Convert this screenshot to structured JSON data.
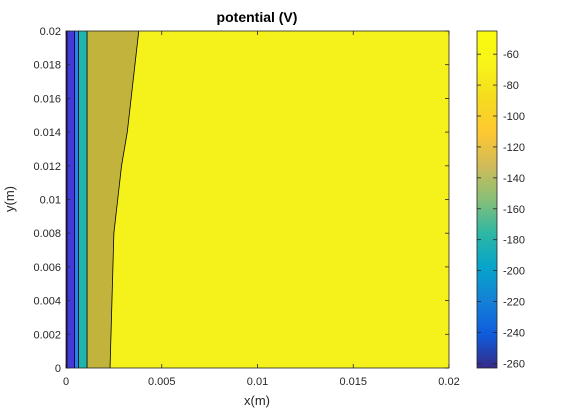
{
  "chart_data": {
    "type": "contour",
    "title": "potential (V)",
    "xlabel": "x(m)",
    "ylabel": "y(m)",
    "xlim": [
      0,
      0.02
    ],
    "ylim": [
      0,
      0.02
    ],
    "x_ticks": [
      "0",
      "0.005",
      "0.01",
      "0.015",
      "0.02"
    ],
    "x_tick_values": [
      0,
      0.005,
      0.01,
      0.015,
      0.02
    ],
    "y_ticks": [
      "0",
      "0.002",
      "0.004",
      "0.006",
      "0.008",
      "0.01",
      "0.012",
      "0.014",
      "0.016",
      "0.018",
      "0.02"
    ],
    "y_tick_values": [
      0,
      0.002,
      0.004,
      0.006,
      0.008,
      0.01,
      0.012,
      0.014,
      0.016,
      0.018,
      0.02
    ],
    "colorbar": {
      "limits": [
        -263,
        -45
      ],
      "ticks": [
        "-60",
        "-80",
        "-100",
        "-120",
        "-140",
        "-160",
        "-180",
        "-200",
        "-220",
        "-240",
        "-260"
      ],
      "tick_values": [
        -60,
        -80,
        -100,
        -120,
        -140,
        -160,
        -180,
        -200,
        -220,
        -240,
        -260
      ],
      "colormap": "parula"
    },
    "regions": [
      {
        "level": -255,
        "color": "#3e26a8",
        "boundary": [
          [
            5e-05,
            0
          ],
          [
            5e-05,
            0.02
          ]
        ]
      },
      {
        "level": -225,
        "color": "#4538d8",
        "boundary": [
          [
            0.00045,
            0
          ],
          [
            0.00045,
            0.02
          ]
        ]
      },
      {
        "level": -195,
        "color": "#2e7ff2",
        "boundary": [
          [
            0.00065,
            0
          ],
          [
            0.00065,
            0.02
          ]
        ]
      },
      {
        "level": -155,
        "color": "#1fb4ac",
        "boundary": [
          [
            0.0011,
            0
          ],
          [
            0.0011,
            0.02
          ]
        ]
      },
      {
        "level": -100,
        "color": "#c1b33b",
        "boundary": [
          [
            0.0023,
            0
          ],
          [
            0.00235,
            0.002
          ],
          [
            0.0024,
            0.004
          ],
          [
            0.00245,
            0.006
          ],
          [
            0.0025,
            0.008
          ],
          [
            0.0027,
            0.01
          ],
          [
            0.0029,
            0.012
          ],
          [
            0.0032,
            0.014
          ],
          [
            0.0034,
            0.016
          ],
          [
            0.0036,
            0.018
          ],
          [
            0.0038,
            0.02
          ]
        ]
      }
    ],
    "background": {
      "level": -50,
      "color": "#f5f21b"
    }
  }
}
